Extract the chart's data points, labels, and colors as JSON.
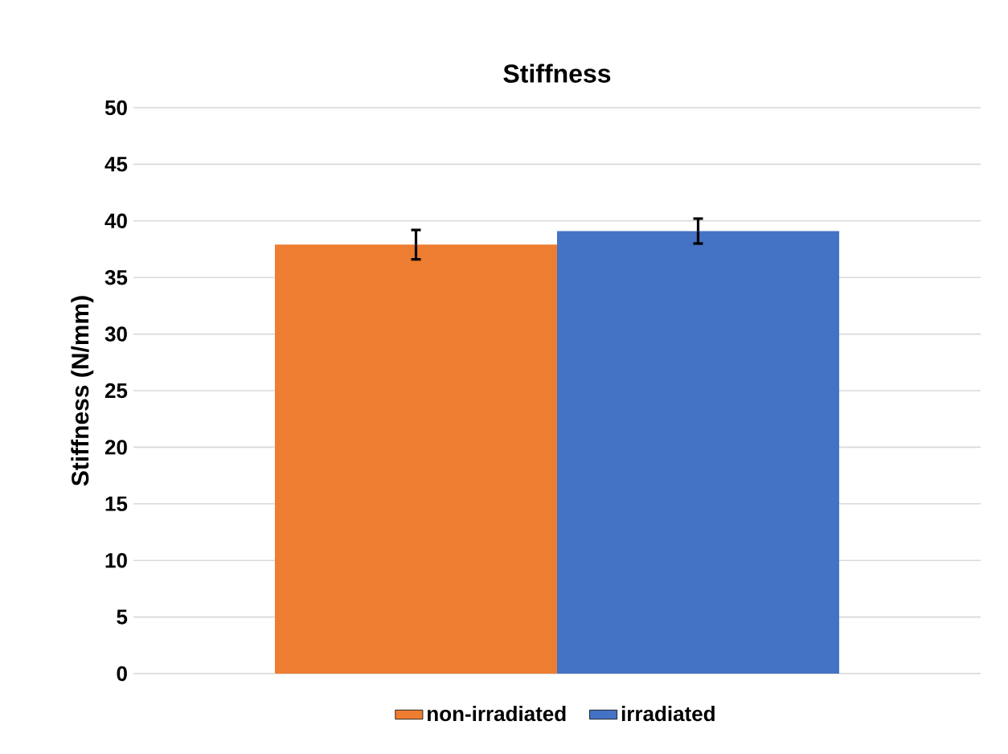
{
  "chart_data": {
    "type": "bar",
    "title": "Stiffness",
    "ylabel": "Stiffness (N/mm)",
    "categories": [
      null
    ],
    "series": [
      {
        "name": "non-irradiated",
        "color": "#ed7d31",
        "values": [
          37.9
        ],
        "errors": [
          1.3
        ]
      },
      {
        "name": "irradiated",
        "color": "#4472c4",
        "values": [
          39.1
        ],
        "errors": [
          1.1
        ]
      }
    ],
    "ylim": [
      0,
      50
    ],
    "yticks": [
      0,
      5,
      10,
      15,
      20,
      25,
      30,
      35,
      40,
      45,
      50
    ],
    "grid": "y",
    "legend": "bottom"
  }
}
